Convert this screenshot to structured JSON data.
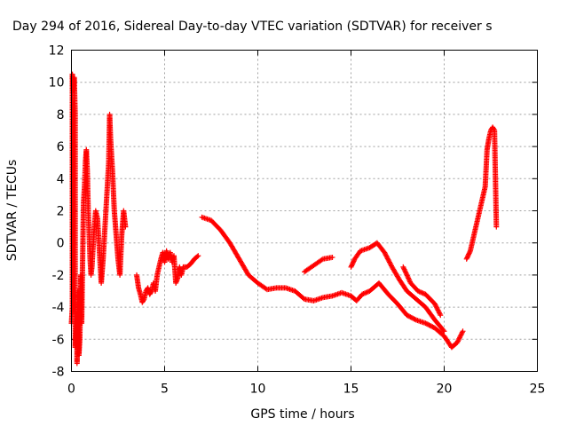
{
  "chart_data": {
    "type": "scatter",
    "title": "Day 294 of 2016, Sidereal Day-to-day VTEC variation (SDTVAR) for receiver s",
    "xlabel": "GPS time / hours",
    "ylabel": "SDTVAR / TECUs",
    "xlim": [
      0,
      25
    ],
    "ylim": [
      -8,
      12
    ],
    "xticks": [
      "0",
      "5",
      "10",
      "15",
      "20",
      "25"
    ],
    "yticks": [
      "-8",
      "-6",
      "-4",
      "-2",
      "0",
      "2",
      "4",
      "6",
      "8",
      "10",
      "12"
    ],
    "grid": true,
    "marker": "plus",
    "color": "#ff0000",
    "series": [
      {
        "segments": [
          [
            [
              0.0,
              -5.0
            ],
            [
              0.05,
              -4.0
            ],
            [
              0.05,
              10.5
            ],
            [
              0.1,
              9.5
            ],
            [
              0.15,
              10.3
            ],
            [
              0.2,
              8.0
            ],
            [
              0.2,
              -6.5
            ],
            [
              0.25,
              -5.5
            ],
            [
              0.3,
              -4.5
            ],
            [
              0.3,
              -7.5
            ],
            [
              0.35,
              -3.0
            ],
            [
              0.4,
              -7.0
            ],
            [
              0.45,
              -6.0
            ],
            [
              0.5,
              -2.0
            ],
            [
              0.55,
              -5.0
            ],
            [
              0.6,
              -1.0
            ],
            [
              0.65,
              2.5
            ],
            [
              0.7,
              3.5
            ],
            [
              0.75,
              5.0
            ],
            [
              0.8,
              5.8
            ],
            [
              0.85,
              4.5
            ],
            [
              0.9,
              2.0
            ],
            [
              0.95,
              0.5
            ],
            [
              1.0,
              -1.0
            ],
            [
              1.05,
              -2.0
            ],
            [
              1.1,
              -1.5
            ],
            [
              1.2,
              0.5
            ],
            [
              1.3,
              2.0
            ],
            [
              1.4,
              1.5
            ],
            [
              1.5,
              -0.5
            ],
            [
              1.6,
              -2.5
            ],
            [
              1.7,
              -1.0
            ],
            [
              1.8,
              1.0
            ],
            [
              1.9,
              3.0
            ],
            [
              2.0,
              5.0
            ],
            [
              2.05,
              8.0
            ],
            [
              2.1,
              6.5
            ],
            [
              2.2,
              4.5
            ],
            [
              2.3,
              2.0
            ],
            [
              2.4,
              0.5
            ],
            [
              2.5,
              -1.0
            ],
            [
              2.6,
              -2.0
            ],
            [
              2.7,
              0.5
            ],
            [
              2.8,
              2.0
            ],
            [
              2.9,
              1.0
            ]
          ],
          [
            [
              3.5,
              -2.0
            ],
            [
              3.6,
              -2.8
            ],
            [
              3.7,
              -3.2
            ],
            [
              3.8,
              -3.7
            ],
            [
              3.9,
              -3.5
            ],
            [
              4.0,
              -3.0
            ],
            [
              4.1,
              -2.8
            ],
            [
              4.2,
              -3.2
            ],
            [
              4.3,
              -3.0
            ],
            [
              4.4,
              -2.5
            ],
            [
              4.5,
              -3.0
            ],
            [
              4.6,
              -2.0
            ],
            [
              4.7,
              -1.5
            ],
            [
              4.8,
              -1.0
            ],
            [
              4.9,
              -0.6
            ],
            [
              5.0,
              -1.2
            ],
            [
              5.1,
              -0.5
            ],
            [
              5.2,
              -1.0
            ],
            [
              5.3,
              -0.6
            ],
            [
              5.4,
              -1.2
            ],
            [
              5.5,
              -0.8
            ],
            [
              5.6,
              -2.5
            ],
            [
              5.7,
              -2.2
            ],
            [
              5.8,
              -1.5
            ],
            [
              5.9,
              -2.0
            ],
            [
              6.0,
              -1.5
            ],
            [
              6.2,
              -1.5
            ],
            [
              6.4,
              -1.3
            ],
            [
              6.6,
              -1.0
            ],
            [
              6.8,
              -0.8
            ]
          ],
          [
            [
              7.0,
              1.6
            ],
            [
              7.5,
              1.4
            ],
            [
              8.0,
              0.8
            ],
            [
              8.5,
              0.0
            ],
            [
              9.0,
              -1.0
            ],
            [
              9.5,
              -2.0
            ],
            [
              10.0,
              -2.5
            ],
            [
              10.5,
              -2.9
            ],
            [
              11.0,
              -2.8
            ],
            [
              11.5,
              -2.8
            ],
            [
              12.0,
              -3.0
            ],
            [
              12.5,
              -3.5
            ],
            [
              13.0,
              -3.6
            ],
            [
              13.5,
              -3.4
            ],
            [
              14.0,
              -3.3
            ],
            [
              14.5,
              -3.1
            ],
            [
              15.0,
              -3.3
            ],
            [
              15.3,
              -3.6
            ],
            [
              15.6,
              -3.2
            ],
            [
              16.0,
              -3.0
            ],
            [
              16.5,
              -2.5
            ],
            [
              17.0,
              -3.2
            ],
            [
              17.5,
              -3.8
            ],
            [
              18.0,
              -4.5
            ],
            [
              18.5,
              -4.8
            ],
            [
              19.0,
              -5.0
            ],
            [
              19.5,
              -5.3
            ],
            [
              20.0,
              -5.8
            ],
            [
              20.4,
              -6.5
            ],
            [
              20.7,
              -6.2
            ],
            [
              21.0,
              -5.5
            ]
          ],
          [
            [
              12.5,
              -1.8
            ],
            [
              13.0,
              -1.4
            ],
            [
              13.5,
              -1.0
            ],
            [
              14.0,
              -0.9
            ]
          ],
          [
            [
              15.0,
              -1.5
            ],
            [
              15.2,
              -1.0
            ],
            [
              15.5,
              -0.5
            ],
            [
              16.0,
              -0.3
            ],
            [
              16.4,
              0.0
            ],
            [
              16.8,
              -0.6
            ],
            [
              17.2,
              -1.5
            ],
            [
              17.6,
              -2.3
            ],
            [
              18.0,
              -3.0
            ],
            [
              18.5,
              -3.5
            ],
            [
              19.0,
              -4.0
            ],
            [
              19.5,
              -4.8
            ],
            [
              20.0,
              -5.5
            ]
          ],
          [
            [
              17.8,
              -1.5
            ],
            [
              18.2,
              -2.5
            ],
            [
              18.6,
              -3.0
            ],
            [
              19.0,
              -3.2
            ],
            [
              19.5,
              -3.8
            ],
            [
              19.8,
              -4.5
            ]
          ],
          [
            [
              21.2,
              -1.0
            ],
            [
              21.4,
              -0.5
            ],
            [
              21.6,
              0.5
            ],
            [
              21.8,
              1.5
            ],
            [
              22.0,
              2.5
            ],
            [
              22.2,
              3.5
            ],
            [
              22.3,
              5.8
            ],
            [
              22.4,
              6.5
            ],
            [
              22.5,
              7.0
            ],
            [
              22.6,
              7.2
            ],
            [
              22.7,
              7.0
            ],
            [
              22.8,
              1.0
            ]
          ]
        ]
      }
    ]
  }
}
